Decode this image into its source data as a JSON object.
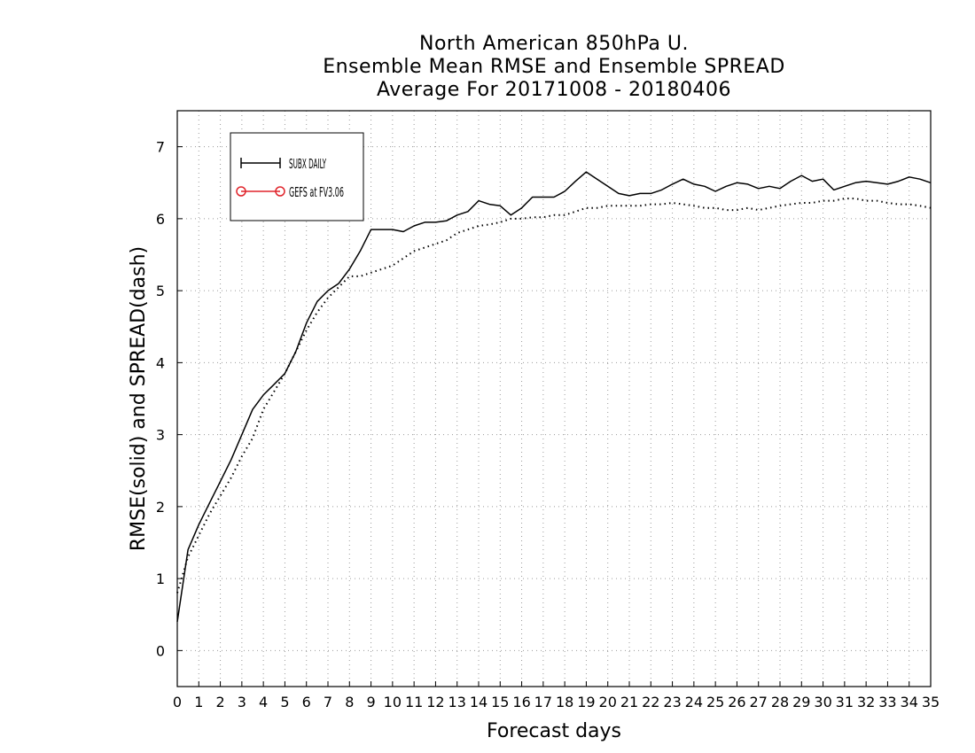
{
  "chart_data": {
    "type": "line",
    "title": [
      "North American 850hPa U.",
      "Ensemble Mean RMSE and Ensemble SPREAD",
      "Average For 20171008 - 20180406"
    ],
    "xlabel": "Forecast days",
    "ylabel": "RMSE(solid) and SPREAD(dash)",
    "xlim": [
      0,
      35
    ],
    "ylim": [
      -0.5,
      7.5
    ],
    "xticks": [
      0,
      1,
      2,
      3,
      4,
      5,
      6,
      7,
      8,
      9,
      10,
      11,
      12,
      13,
      14,
      15,
      16,
      17,
      18,
      19,
      20,
      21,
      22,
      23,
      24,
      25,
      26,
      27,
      28,
      29,
      30,
      31,
      32,
      33,
      34,
      35
    ],
    "yticks": [
      0,
      1,
      2,
      3,
      4,
      5,
      6,
      7
    ],
    "grid": true,
    "legend_position": "top-left",
    "legend": [
      {
        "label": "SUBX DAILY",
        "color": "#000000",
        "marker": "plus"
      },
      {
        "label": "GEFS at FV3.06",
        "color": "#e0242b",
        "marker": "circle"
      }
    ],
    "series": [
      {
        "name": "SUBX DAILY",
        "metric": "RMSE",
        "style": "solid",
        "color": "#000000",
        "x": [
          0,
          0.5,
          1,
          1.5,
          2,
          2.5,
          3,
          3.5,
          4,
          4.5,
          5,
          5.5,
          6,
          6.5,
          7,
          7.5,
          8,
          8.5,
          9,
          9.5,
          10,
          10.5,
          11,
          11.5,
          12,
          12.5,
          13,
          13.5,
          14,
          14.5,
          15,
          15.5,
          16,
          16.5,
          17,
          17.5,
          18,
          18.5,
          19,
          19.5,
          20,
          20.5,
          21,
          21.5,
          22,
          22.5,
          23,
          23.5,
          24,
          24.5,
          25,
          25.5,
          26,
          26.5,
          27,
          27.5,
          28,
          28.5,
          29,
          29.5,
          30,
          30.5,
          31,
          31.5,
          32,
          32.5,
          33,
          33.5,
          34,
          34.5,
          35
        ],
        "y": [
          0.4,
          1.4,
          1.75,
          2.05,
          2.35,
          2.65,
          3.0,
          3.35,
          3.55,
          3.7,
          3.85,
          4.15,
          4.55,
          4.85,
          5.0,
          5.1,
          5.3,
          5.55,
          5.85,
          5.85,
          5.85,
          5.82,
          5.9,
          5.95,
          5.95,
          5.97,
          6.05,
          6.1,
          6.25,
          6.2,
          6.18,
          6.05,
          6.15,
          6.3,
          6.3,
          6.3,
          6.38,
          6.52,
          6.65,
          6.55,
          6.45,
          6.35,
          6.32,
          6.35,
          6.35,
          6.4,
          6.48,
          6.55,
          6.48,
          6.45,
          6.38,
          6.45,
          6.5,
          6.48,
          6.42,
          6.45,
          6.42,
          6.52,
          6.6,
          6.52,
          6.55,
          6.4,
          6.45,
          6.5,
          6.52,
          6.5,
          6.48,
          6.52,
          6.58,
          6.55,
          6.5
        ]
      },
      {
        "name": "SUBX DAILY",
        "metric": "SPREAD",
        "style": "dotted",
        "color": "#000000",
        "x": [
          0,
          0.5,
          1,
          1.5,
          2,
          2.5,
          3,
          3.5,
          4,
          4.5,
          5,
          5.5,
          6,
          6.5,
          7,
          7.5,
          8,
          8.5,
          9,
          9.5,
          10,
          10.5,
          11,
          11.5,
          12,
          12.5,
          13,
          13.5,
          14,
          14.5,
          15,
          15.5,
          16,
          16.5,
          17,
          17.5,
          18,
          18.5,
          19,
          19.5,
          20,
          20.5,
          21,
          21.5,
          22,
          22.5,
          23,
          23.5,
          24,
          24.5,
          25,
          25.5,
          26,
          26.5,
          27,
          27.5,
          28,
          28.5,
          29,
          29.5,
          30,
          30.5,
          31,
          31.5,
          32,
          32.5,
          33,
          33.5,
          34,
          34.5,
          35
        ],
        "y": [
          0.8,
          1.3,
          1.6,
          1.9,
          2.15,
          2.4,
          2.7,
          2.95,
          3.35,
          3.6,
          3.85,
          4.15,
          4.45,
          4.7,
          4.9,
          5.05,
          5.2,
          5.2,
          5.25,
          5.3,
          5.35,
          5.45,
          5.55,
          5.6,
          5.65,
          5.7,
          5.8,
          5.85,
          5.9,
          5.92,
          5.95,
          6.0,
          6.0,
          6.02,
          6.02,
          6.05,
          6.05,
          6.1,
          6.15,
          6.15,
          6.18,
          6.18,
          6.18,
          6.18,
          6.2,
          6.2,
          6.22,
          6.2,
          6.18,
          6.15,
          6.15,
          6.12,
          6.12,
          6.15,
          6.12,
          6.15,
          6.18,
          6.2,
          6.22,
          6.22,
          6.25,
          6.25,
          6.28,
          6.28,
          6.25,
          6.25,
          6.22,
          6.2,
          6.2,
          6.18,
          6.15
        ]
      }
    ]
  }
}
